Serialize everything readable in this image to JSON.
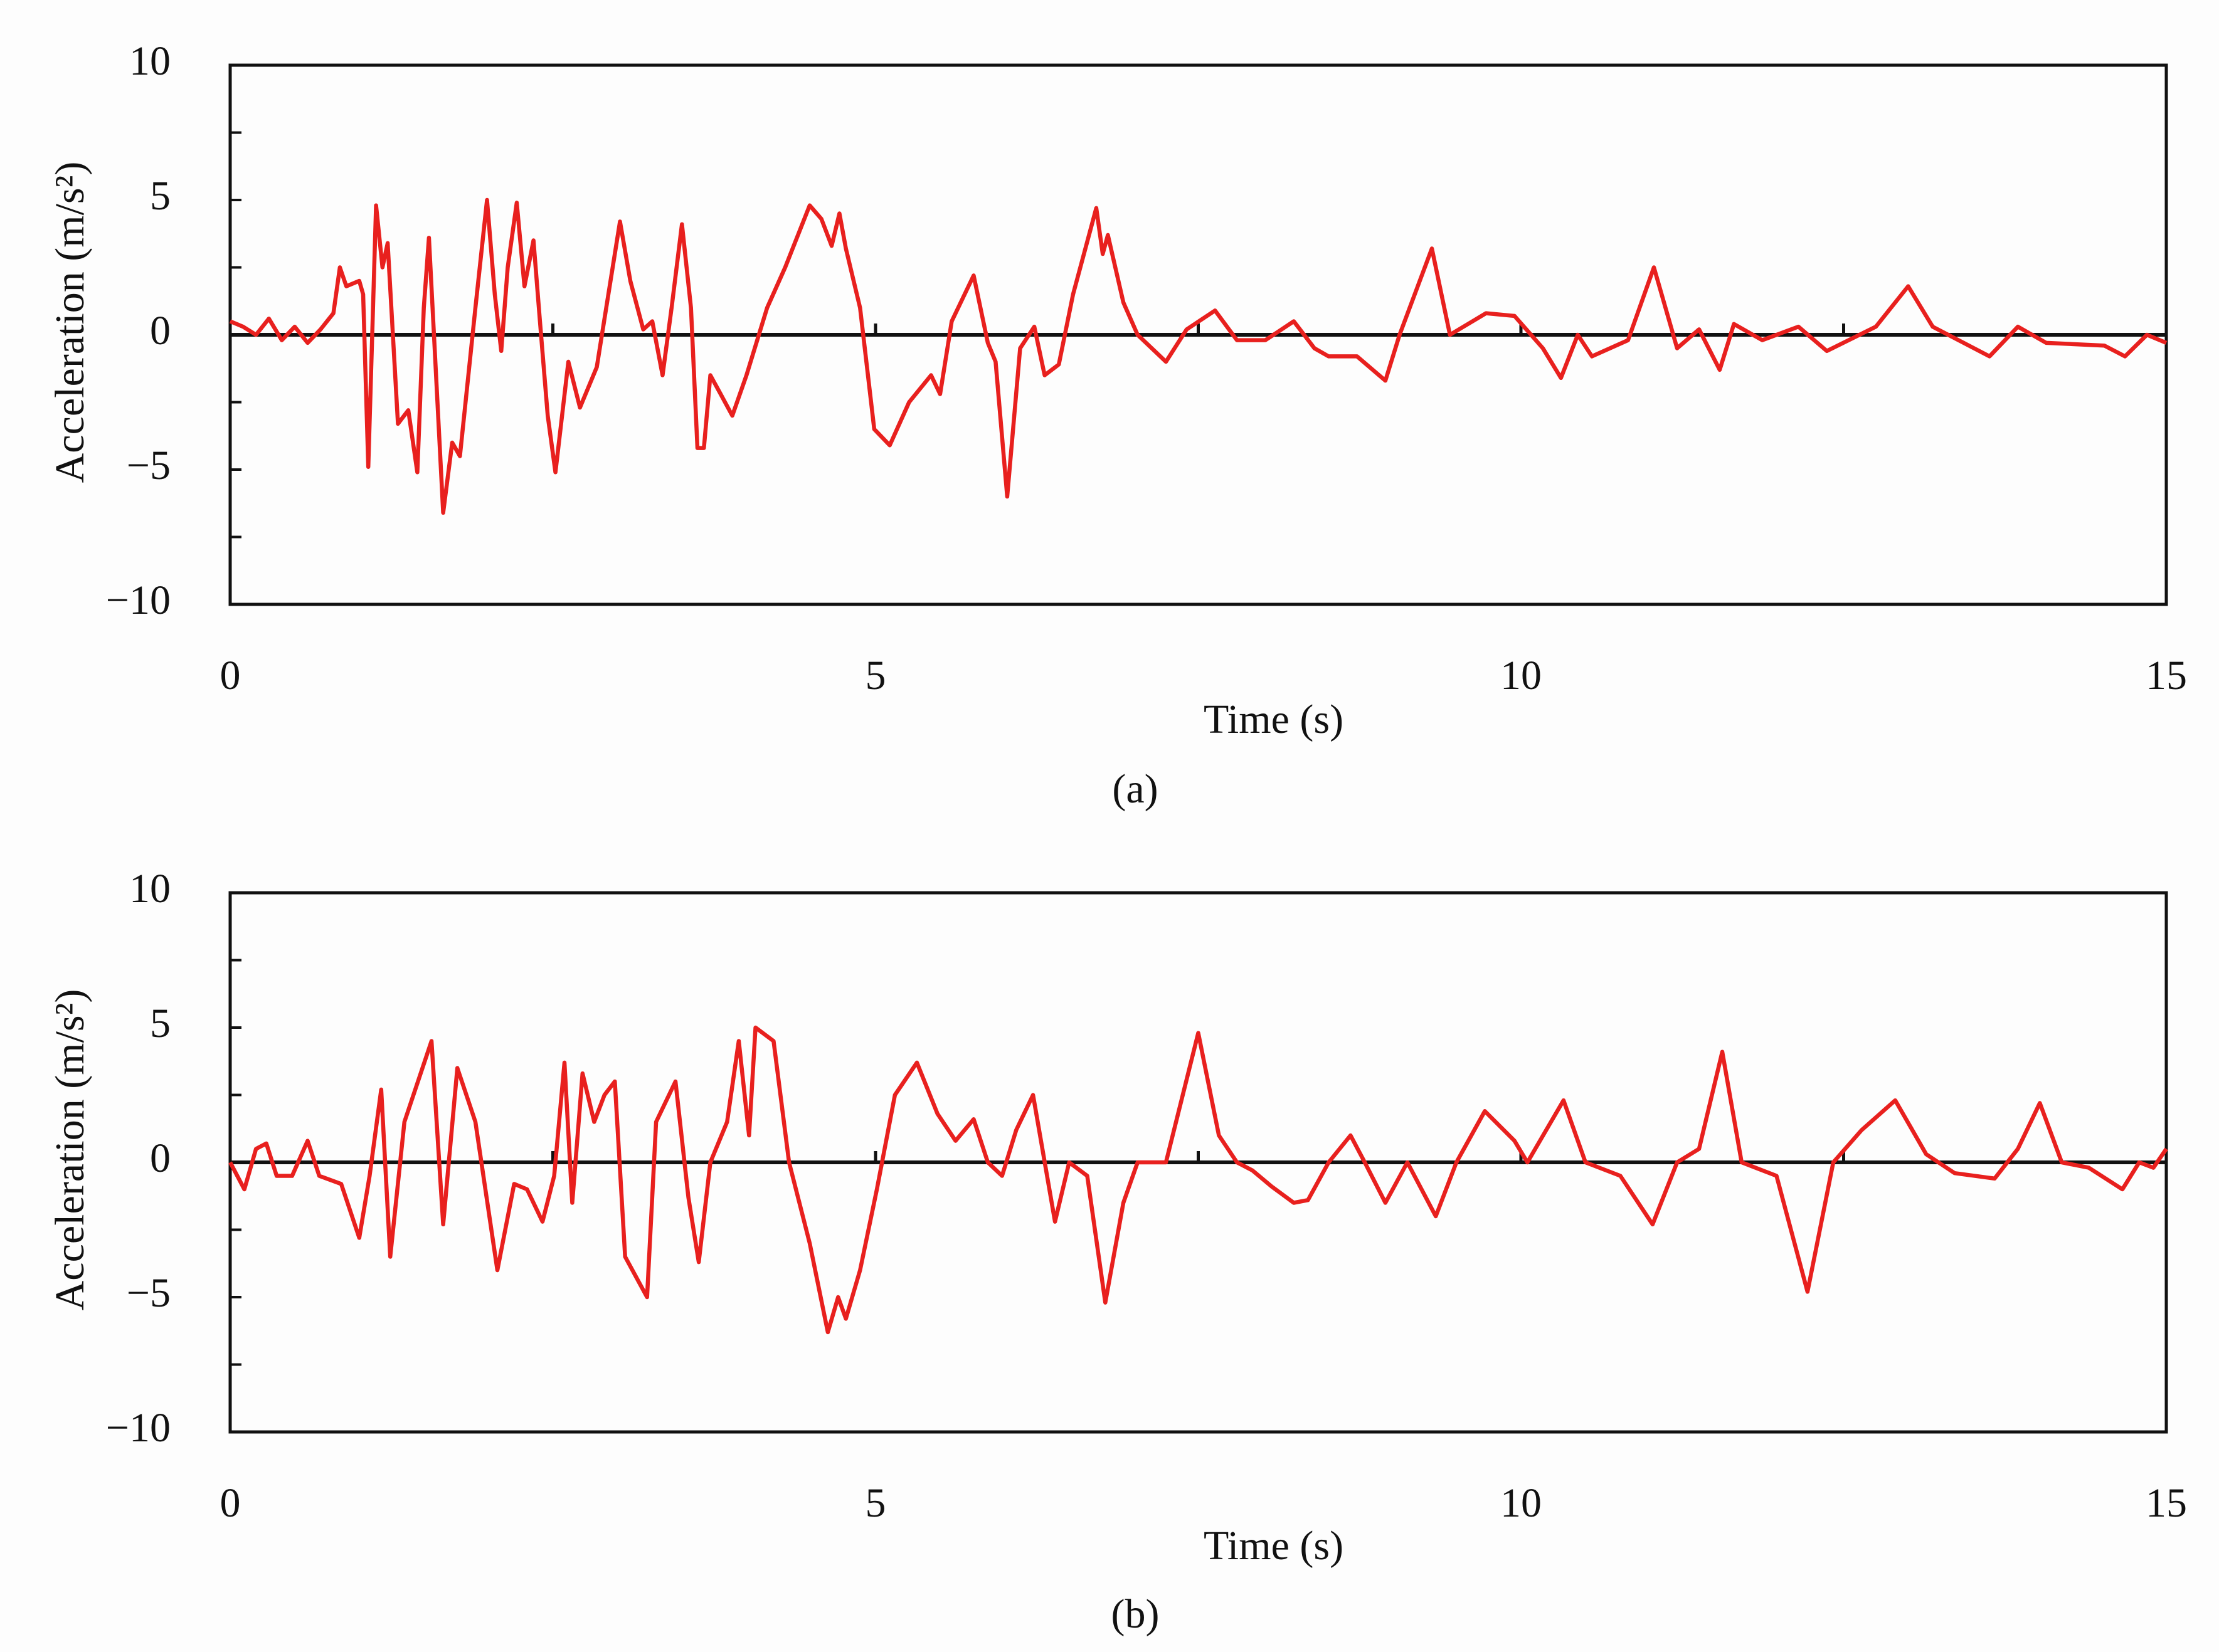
{
  "chart_data": [
    {
      "type": "line",
      "x_label": "Time (s)",
      "y_label": "Acceleration (m/s²)",
      "caption": "(a)",
      "color": "#e8201e",
      "xlim": [
        0,
        15
      ],
      "ylim": [
        -10,
        10
      ],
      "xticks": [
        0,
        5,
        10,
        15
      ],
      "yticks": [
        {
          "value": -10,
          "label": "−10"
        },
        {
          "value": -5,
          "label": "−5"
        },
        0,
        5,
        10
      ],
      "xminor_ticks": [
        2.5,
        5,
        7.5,
        10,
        12.5
      ],
      "yminor_ticks": [
        -7.5,
        -2.5,
        2.5,
        7.5
      ],
      "zero_line": true,
      "x": [
        0,
        0.1,
        0.2,
        0.3,
        0.4,
        0.5,
        0.6,
        0.7,
        0.8,
        0.85,
        0.9,
        1.0,
        1.03,
        1.07,
        1.13,
        1.18,
        1.22,
        1.3,
        1.38,
        1.45,
        1.5,
        1.54,
        1.65,
        1.72,
        1.78,
        1.9,
        1.99,
        2.05,
        2.1,
        2.15,
        2.22,
        2.28,
        2.35,
        2.4,
        2.46,
        2.52,
        2.62,
        2.71,
        2.84,
        2.93,
        3.02,
        3.1,
        3.2,
        3.27,
        3.35,
        3.42,
        3.5,
        3.57,
        3.62,
        3.67,
        3.72,
        3.8,
        3.89,
        4.0,
        4.16,
        4.3,
        4.49,
        4.58,
        4.66,
        4.72,
        4.77,
        4.88,
        4.99,
        5.11,
        5.26,
        5.43,
        5.5,
        5.59,
        5.76,
        5.87,
        5.93,
        6.02,
        6.12,
        6.23,
        6.31,
        6.42,
        6.53,
        6.71,
        6.76,
        6.8,
        6.92,
        7.03,
        7.25,
        7.41,
        7.63,
        7.8,
        8.02,
        8.24,
        8.4,
        8.51,
        8.73,
        8.95,
        9.06,
        9.31,
        9.45,
        9.73,
        9.95,
        10.17,
        10.31,
        10.44,
        10.55,
        10.83,
        11.03,
        11.21,
        11.38,
        11.54,
        11.65,
        11.87,
        12.15,
        12.37,
        12.75,
        13.0,
        13.19,
        13.63,
        13.85,
        14.07,
        14.52,
        14.68,
        14.85,
        15
      ],
      "values": [
        0.5,
        0.3,
        0,
        0.6,
        -0.2,
        0.3,
        -0.3,
        0.2,
        0.8,
        2.5,
        1.8,
        2.0,
        1.5,
        -4.9,
        4.8,
        2.5,
        3.4,
        -3.3,
        -2.8,
        -5.1,
        1.0,
        3.6,
        -6.6,
        -4.0,
        -4.5,
        1.0,
        5.0,
        1.5,
        -0.6,
        2.5,
        4.9,
        1.8,
        3.5,
        0.5,
        -3.0,
        -5.1,
        -1.0,
        -2.7,
        -1.2,
        1.5,
        4.2,
        2.0,
        0.2,
        0.5,
        -1.5,
        1.0,
        4.1,
        1.0,
        -4.2,
        -4.2,
        -1.5,
        -2.2,
        -3.0,
        -1.5,
        1.0,
        2.5,
        4.8,
        4.3,
        3.3,
        4.5,
        3.2,
        1.0,
        -3.5,
        -4.1,
        -2.5,
        -1.5,
        -2.2,
        0.5,
        2.2,
        -0.3,
        -1.0,
        -6.0,
        -0.5,
        0.3,
        -1.5,
        -1.1,
        1.5,
        4.7,
        3.0,
        3.7,
        1.2,
        0,
        -1.0,
        0.2,
        0.9,
        -0.2,
        -0.2,
        0.5,
        -0.5,
        -0.8,
        -0.8,
        -1.7,
        0,
        3.2,
        0,
        0.8,
        0.7,
        -0.5,
        -1.6,
        0,
        -0.8,
        -0.2,
        2.5,
        -0.5,
        0.2,
        -1.3,
        0.4,
        -0.2,
        0.3,
        -0.6,
        0.3,
        1.8,
        0.3,
        -0.8,
        0.3,
        -0.3,
        -0.4,
        -0.8,
        0,
        -0.3
      ]
    },
    {
      "type": "line",
      "x_label": "Time (s)",
      "y_label": "Acceleration (m/s²)",
      "caption": "(b)",
      "color": "#e8201e",
      "xlim": [
        0,
        15
      ],
      "ylim": [
        -10,
        10
      ],
      "xticks": [
        0,
        5,
        10,
        15
      ],
      "yticks": [
        {
          "value": -10,
          "label": "−10"
        },
        {
          "value": -5,
          "label": "−5"
        },
        0,
        5,
        10
      ],
      "xminor_ticks": [
        2.5,
        5,
        7.5,
        10,
        12.5
      ],
      "yminor_ticks": [
        -7.5,
        -2.5,
        2.5,
        7.5
      ],
      "zero_line": true,
      "x": [
        0,
        0.11,
        0.2,
        0.28,
        0.36,
        0.48,
        0.6,
        0.69,
        0.86,
        1.0,
        1.08,
        1.17,
        1.24,
        1.35,
        1.56,
        1.65,
        1.76,
        1.9,
        2.07,
        2.2,
        2.3,
        2.42,
        2.51,
        2.59,
        2.65,
        2.73,
        2.82,
        2.9,
        2.98,
        3.06,
        3.23,
        3.3,
        3.45,
        3.55,
        3.63,
        3.72,
        3.85,
        3.94,
        4.02,
        4.07,
        4.21,
        4.33,
        4.49,
        4.63,
        4.71,
        4.77,
        4.88,
        5.01,
        5.15,
        5.32,
        5.48,
        5.62,
        5.76,
        5.87,
        5.98,
        6.09,
        6.22,
        6.39,
        6.5,
        6.64,
        6.78,
        6.92,
        7.03,
        7.25,
        7.5,
        7.66,
        7.8,
        7.92,
        8.07,
        8.24,
        8.35,
        8.51,
        8.68,
        8.79,
        8.95,
        9.12,
        9.34,
        9.5,
        9.72,
        9.95,
        10.05,
        10.33,
        10.5,
        10.77,
        11.02,
        11.21,
        11.38,
        11.56,
        11.71,
        11.98,
        12.22,
        12.42,
        12.64,
        12.9,
        13.14,
        13.36,
        13.67,
        13.85,
        14.02,
        14.19,
        14.4,
        14.66,
        14.79,
        14.9,
        15
      ],
      "values": [
        0,
        -1.0,
        0.5,
        0.7,
        -0.5,
        -0.5,
        0.8,
        -0.5,
        -0.8,
        -2.8,
        -0.5,
        2.7,
        -3.5,
        1.5,
        4.5,
        -2.3,
        3.5,
        1.5,
        -4.0,
        -0.8,
        -1.0,
        -2.2,
        -0.5,
        3.7,
        -1.5,
        3.3,
        1.5,
        2.5,
        3.0,
        -3.5,
        -5.0,
        1.5,
        3.0,
        -1.3,
        -3.7,
        0,
        1.5,
        4.5,
        1.0,
        5.0,
        4.5,
        0,
        -3.0,
        -6.3,
        -5.0,
        -5.8,
        -4.0,
        -1.0,
        2.5,
        3.7,
        1.8,
        0.8,
        1.6,
        0,
        -0.5,
        1.2,
        2.5,
        -2.2,
        0,
        -0.5,
        -5.2,
        -1.5,
        0,
        0,
        4.8,
        1.0,
        0,
        -0.3,
        -0.9,
        -1.5,
        -1.4,
        0,
        1.0,
        0,
        -1.5,
        0,
        -2.0,
        0,
        1.9,
        0.8,
        0,
        2.3,
        0,
        -0.5,
        -2.3,
        0,
        0.5,
        4.1,
        0,
        -0.5,
        -4.8,
        0,
        1.2,
        2.3,
        0.3,
        -0.4,
        -0.6,
        0.5,
        2.2,
        0,
        -0.2,
        -1.0,
        0,
        -0.2,
        0.5
      ]
    }
  ]
}
